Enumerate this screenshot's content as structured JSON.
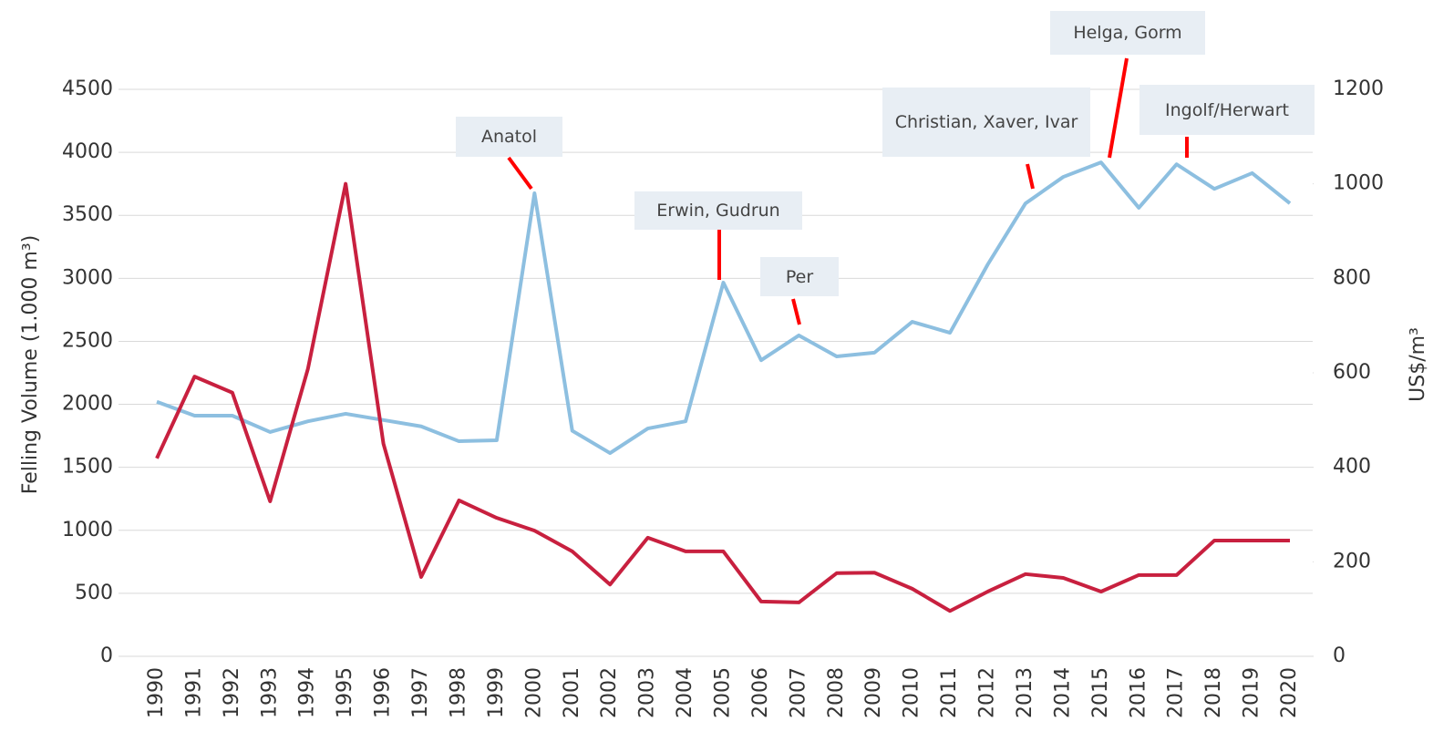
{
  "chart_data": {
    "type": "line",
    "ylabel": "Felling Volume (1.000 m³)",
    "y2label": "US$/m³",
    "x": [
      1990,
      1991,
      1992,
      1993,
      1994,
      1995,
      1996,
      1997,
      1998,
      1999,
      2000,
      2001,
      2002,
      2003,
      2004,
      2005,
      2006,
      2007,
      2008,
      2009,
      2010,
      2011,
      2012,
      2013,
      2014,
      2015,
      2016,
      2017,
      2018,
      2019,
      2020
    ],
    "xlim": [
      1990,
      2020
    ],
    "ylim": [
      0,
      4500
    ],
    "yticks": [
      0,
      500,
      1000,
      1500,
      2000,
      2500,
      3000,
      3500,
      4000,
      4500
    ],
    "y2lim": [
      0,
      1200
    ],
    "y2ticks": [
      0,
      200,
      400,
      600,
      800,
      1000,
      1200
    ],
    "grid": true,
    "series": [
      {
        "color": "#8dbfe0",
        "values": [
          2020,
          1910,
          1910,
          1780,
          1865,
          1925,
          1875,
          1825,
          1707,
          1715,
          3675,
          1790,
          1613,
          1808,
          1865,
          2966,
          2350,
          2547,
          2380,
          2410,
          2655,
          2568,
          3110,
          3595,
          3805,
          3920,
          3560,
          3905,
          3710,
          3835,
          3595
        ]
      },
      {
        "color": "#c8203f",
        "axis": "y2",
        "values": [
          419,
          592,
          558,
          328,
          608,
          1000,
          450,
          168,
          330,
          293,
          266,
          222,
          152,
          251,
          222,
          222,
          116,
          114,
          176,
          177,
          143,
          96,
          137,
          174,
          166,
          137,
          172,
          172,
          245,
          245,
          245
        ]
      }
    ],
    "annotations": [
      {
        "text": "Anatol",
        "x": 2000
      },
      {
        "text": "Erwin, Gudrun",
        "x": 2005
      },
      {
        "text": "Per",
        "x": 2007
      },
      {
        "text": "Christian, Xaver, Ivar",
        "x": 2013
      },
      {
        "text": "Helga, Gorm",
        "x": 2015
      },
      {
        "text": "Ingolf/Herwart",
        "x": 2017
      }
    ]
  }
}
